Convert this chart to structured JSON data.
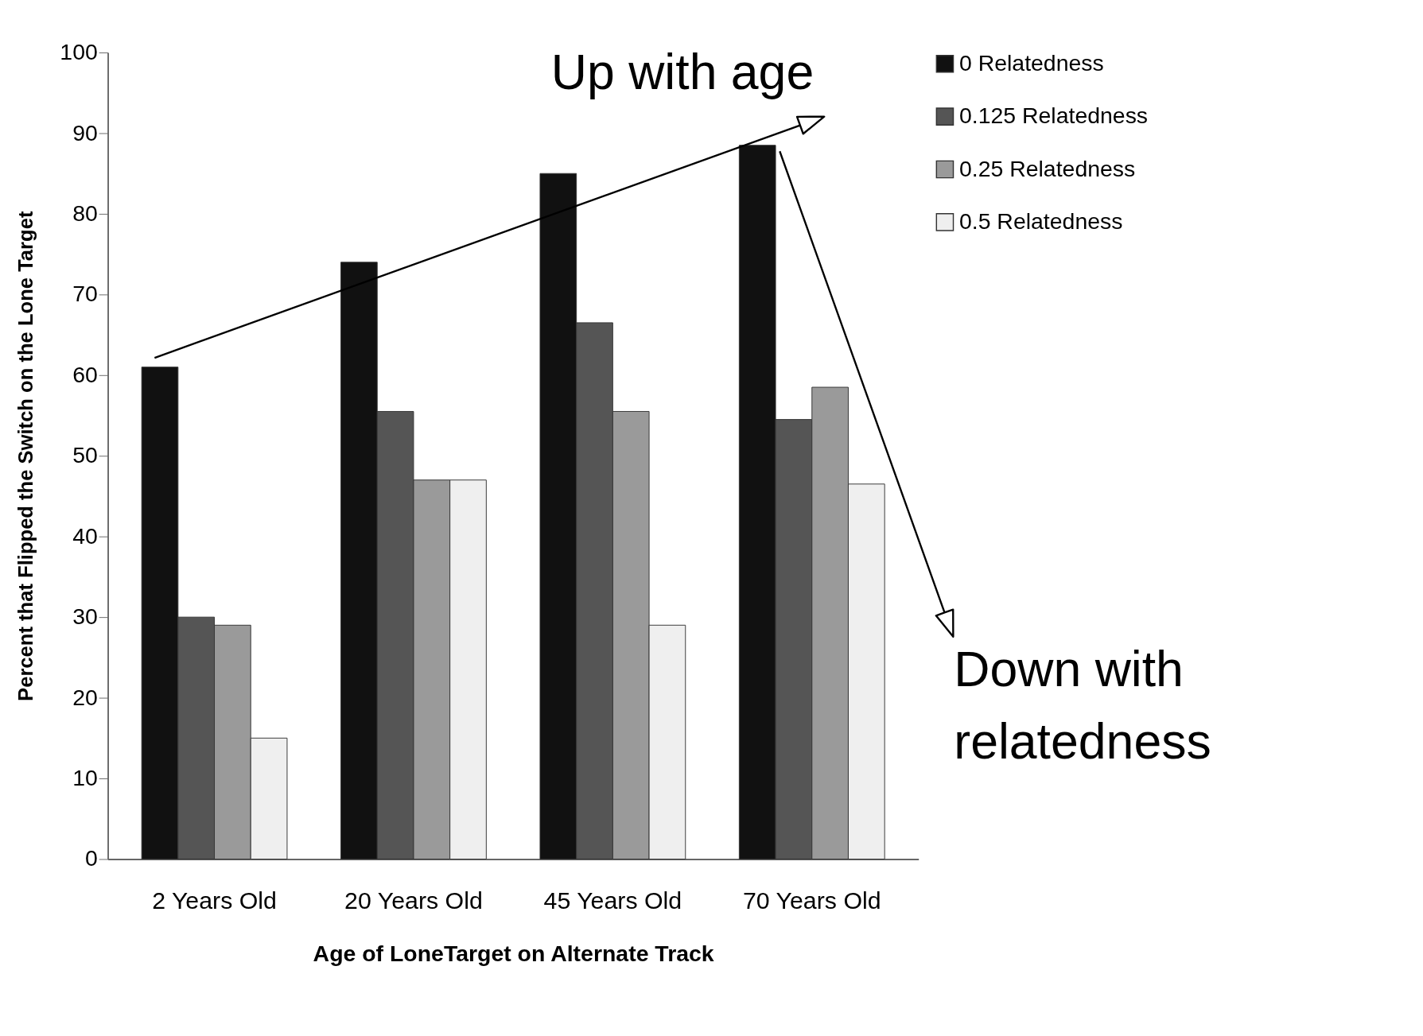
{
  "chart_data": {
    "type": "bar",
    "categories": [
      "2 Years Old",
      "20 Years Old",
      "45 Years Old",
      "70 Years Old"
    ],
    "xlabel": "Age of LoneTarget on Alternate Track",
    "ylabel": "Percent that Flipped the Switch on the Lone Target",
    "ylim": [
      0,
      100
    ],
    "yticks": [
      0,
      10,
      20,
      30,
      40,
      50,
      60,
      70,
      80,
      90,
      100
    ],
    "series": [
      {
        "name": "0 Relatedness",
        "color": "#111111",
        "values": [
          61,
          74,
          85,
          88.5
        ]
      },
      {
        "name": "0.125 Relatedness",
        "color": "#555555",
        "values": [
          30,
          55.5,
          66.5,
          54.5
        ]
      },
      {
        "name": "0.25 Relatedness",
        "color": "#9a9a9a",
        "values": [
          29,
          47,
          55.5,
          58.5
        ]
      },
      {
        "name": "0.5 Relatedness",
        "color": "#efefef",
        "values": [
          15,
          47,
          29,
          46.5
        ]
      }
    ],
    "annotations": [
      "Up with age",
      "Down with relatedness"
    ],
    "legend": "top right",
    "grid": false
  }
}
